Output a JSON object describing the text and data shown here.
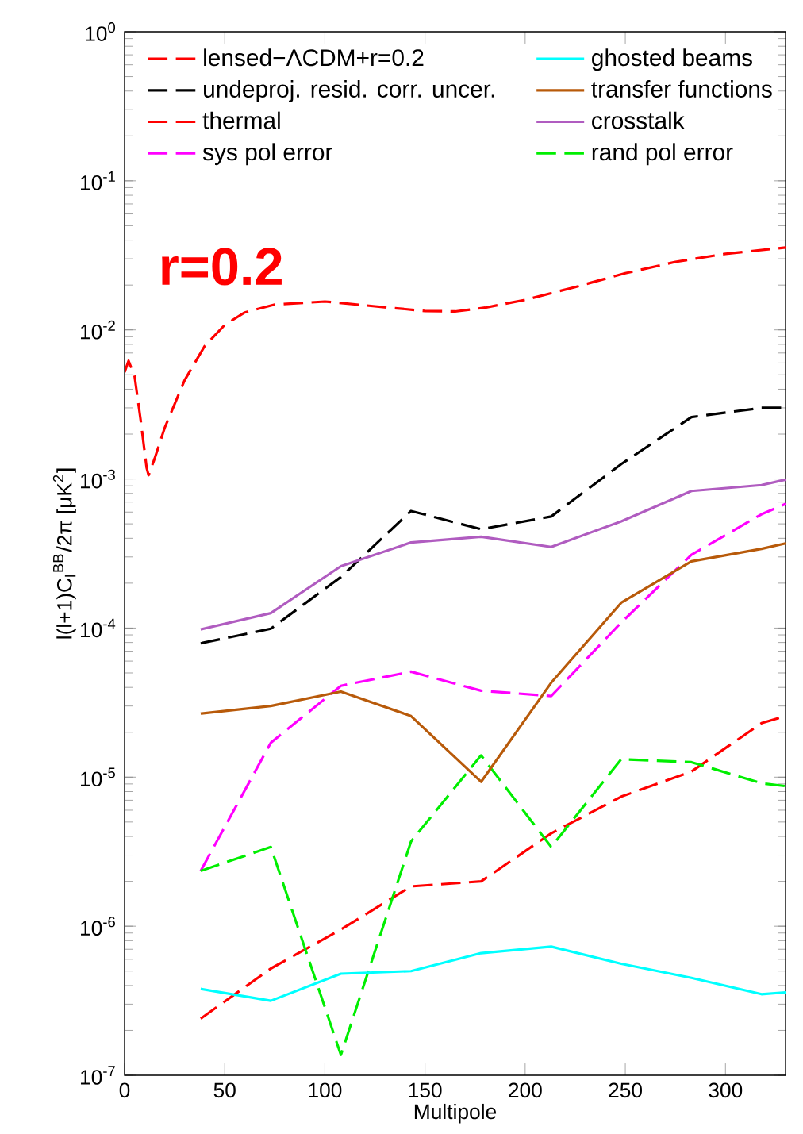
{
  "chart_data": {
    "type": "line",
    "xlabel": "Multipole",
    "ylabel": "l(l+1)C$_{l}$$^{BB}$/2π [μK$^{2}$]",
    "xlim": [
      0,
      330
    ],
    "ylim": [
      1e-07,
      1
    ],
    "xticks": [
      0,
      50,
      100,
      150,
      200,
      250,
      300
    ],
    "yticks": [
      {
        "value": 1e-07,
        "label": "10$^{-7}$"
      },
      {
        "value": 1e-06,
        "label": "10$^{-6}$"
      },
      {
        "value": 1e-05,
        "label": "10$^{-5}$"
      },
      {
        "value": 0.0001,
        "label": "10$^{-4}$"
      },
      {
        "value": 0.001,
        "label": "10$^{-3}$"
      },
      {
        "value": 0.01,
        "label": "10$^{-2}$"
      },
      {
        "value": 0.1,
        "label": "10$^{-1}$"
      },
      {
        "value": 1,
        "label": "10$^{0}$"
      }
    ],
    "log": true,
    "legend": "top",
    "marker": "none",
    "annotations": [
      "r=0.2"
    ],
    "series": [
      {
        "name": "lensed−ΛCDM+r=0.2",
        "color": "#ff0000",
        "line_style": "dashed",
        "x": [
          0,
          2,
          5,
          8,
          11,
          12,
          15,
          20,
          30,
          40,
          50,
          60,
          75,
          100,
          125,
          150,
          165,
          180,
          200,
          225,
          250,
          275,
          300,
          330
        ],
        "values": [
          0.0052,
          0.0062,
          0.0049,
          0.0025,
          0.00119,
          0.00106,
          0.00137,
          0.0022,
          0.0046,
          0.0078,
          0.0108,
          0.0131,
          0.0148,
          0.0155,
          0.0144,
          0.0134,
          0.0133,
          0.0141,
          0.0159,
          0.0194,
          0.024,
          0.0286,
          0.0324,
          0.0357
        ]
      },
      {
        "name": "undeproj. resid. corr. uncer.",
        "color": "#000000",
        "line_style": "dashed",
        "x": [
          38,
          73,
          108,
          143,
          178,
          213,
          248,
          283,
          318,
          330
        ],
        "values": [
          7.9e-05,
          9.9e-05,
          0.00022,
          0.00061,
          0.00046,
          0.00056,
          0.00126,
          0.0026,
          0.003,
          0.003
        ]
      },
      {
        "name": "thermal",
        "color": "#ff0000",
        "line_style": "dashed",
        "x": [
          38,
          73,
          108,
          143,
          178,
          213,
          248,
          283,
          318,
          330
        ],
        "values": [
          2.4e-07,
          5.2e-07,
          9.5e-07,
          1.85e-06,
          2e-06,
          4.2e-06,
          7.4e-06,
          1.09e-05,
          2.3e-05,
          2.57e-05
        ]
      },
      {
        "name": "sys pol error",
        "color": "#ff00ff",
        "line_style": "dashed",
        "x": [
          38,
          73,
          108,
          143,
          178,
          213,
          248,
          283,
          318,
          330
        ],
        "values": [
          2.35e-06,
          1.7e-05,
          4.1e-05,
          5.1e-05,
          3.8e-05,
          3.5e-05,
          0.000109,
          0.00031,
          0.00058,
          0.00068
        ]
      },
      {
        "name": "rand pol error",
        "color": "#00ee00",
        "line_style": "dashed",
        "x": [
          38,
          73,
          108,
          143,
          178,
          213,
          248,
          283,
          318,
          330
        ],
        "values": [
          2.35e-06,
          3.4e-06,
          1.37e-07,
          3.7e-06,
          1.4e-05,
          3.4e-06,
          1.32e-05,
          1.26e-05,
          9.1e-06,
          8.7e-06
        ]
      },
      {
        "name": "ghosted beams",
        "color": "#00ffff",
        "line_style": "solid",
        "x": [
          38,
          73,
          108,
          143,
          178,
          213,
          248,
          283,
          318,
          330
        ],
        "values": [
          3.8e-07,
          3.16e-07,
          4.8e-07,
          5e-07,
          6.6e-07,
          7.3e-07,
          5.6e-07,
          4.5e-07,
          3.5e-07,
          3.6e-07
        ]
      },
      {
        "name": "transfer functions",
        "color": "#b85a0a",
        "line_style": "solid",
        "x": [
          38,
          73,
          108,
          143,
          178,
          213,
          248,
          283,
          318,
          330
        ],
        "values": [
          2.67e-05,
          3e-05,
          3.75e-05,
          2.57e-05,
          9.3e-06,
          4.3e-05,
          0.000148,
          0.00028,
          0.00034,
          0.00037
        ]
      },
      {
        "name": "crosstalk",
        "color": "#b05cc0",
        "line_style": "solid",
        "x": [
          38,
          73,
          108,
          143,
          178,
          213,
          248,
          283,
          318,
          330
        ],
        "values": [
          9.8e-05,
          0.000126,
          0.00026,
          0.000375,
          0.00041,
          0.00035,
          0.00052,
          0.00083,
          0.00091,
          0.00099
        ]
      }
    ]
  }
}
